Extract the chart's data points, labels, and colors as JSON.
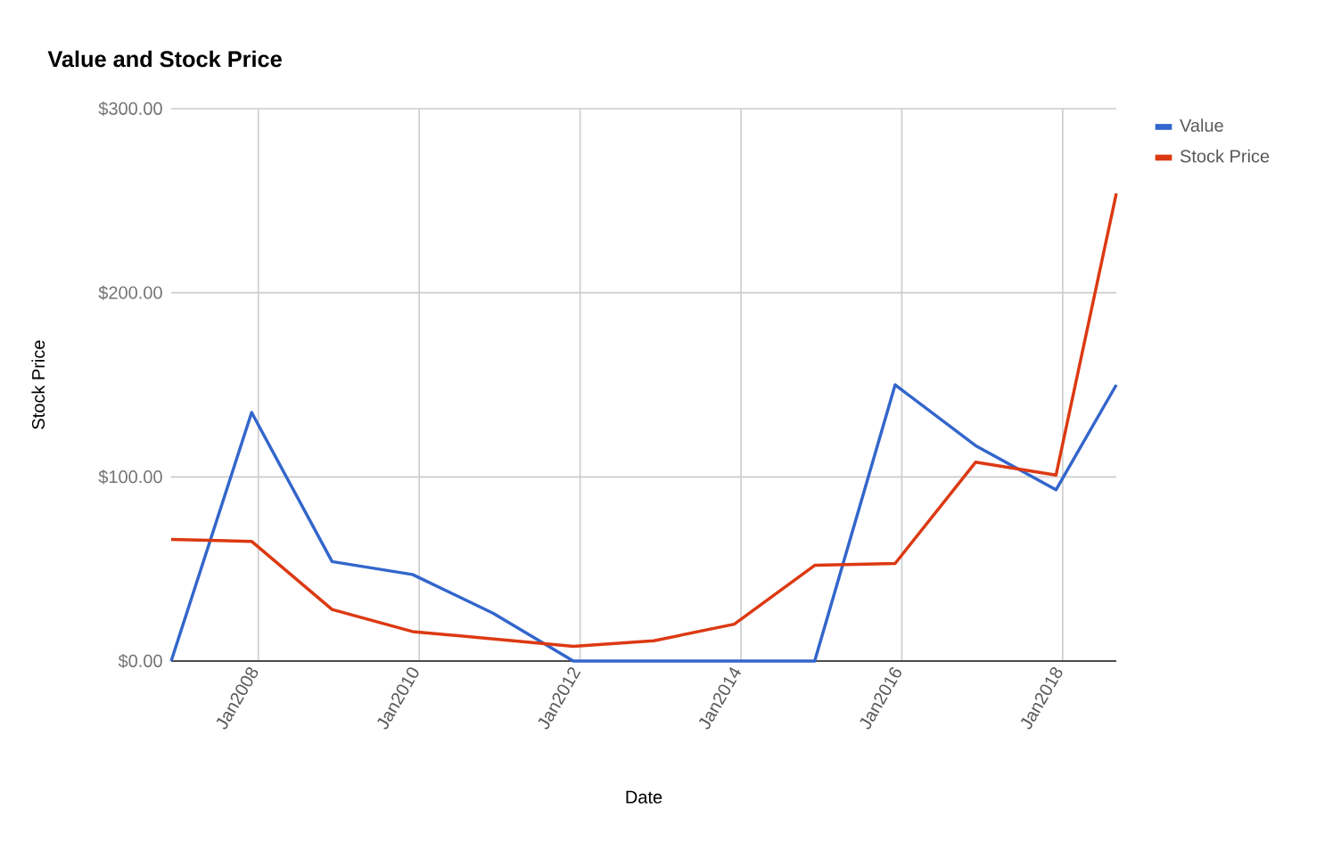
{
  "chart_data": {
    "type": "line",
    "title": "Value and Stock Price",
    "xlabel": "Date",
    "ylabel": "Stock Price",
    "x": [
      "2006-12",
      "2007-12",
      "2008-12",
      "2009-12",
      "2010-12",
      "2011-12",
      "2012-12",
      "2013-12",
      "2014-12",
      "2015-12",
      "2016-12",
      "2017-12",
      "2018-09"
    ],
    "series": [
      {
        "name": "Value",
        "color": "#3366cc",
        "values": [
          0,
          135,
          54,
          47,
          26,
          0,
          0,
          0,
          0,
          150,
          117,
          93,
          150
        ]
      },
      {
        "name": "Stock Price",
        "color": "#dc3912",
        "values": [
          66,
          65,
          28,
          16,
          12,
          8,
          11,
          20,
          52,
          53,
          108,
          101,
          254
        ]
      }
    ],
    "xlim": [
      "2006-12",
      "2018-09"
    ],
    "xticks": [
      {
        "value": "2008-01",
        "label": "Jan2008"
      },
      {
        "value": "2010-01",
        "label": "Jan2010"
      },
      {
        "value": "2012-01",
        "label": "Jan2012"
      },
      {
        "value": "2014-01",
        "label": "Jan2014"
      },
      {
        "value": "2016-01",
        "label": "Jan2016"
      },
      {
        "value": "2018-01",
        "label": "Jan2018"
      }
    ],
    "ylim": [
      0,
      300
    ],
    "yticks": [
      {
        "value": 0,
        "label": "$0.00"
      },
      {
        "value": 100,
        "label": "$100.00"
      },
      {
        "value": 200,
        "label": "$200.00"
      },
      {
        "value": 300,
        "label": "$300.00"
      }
    ],
    "grid": true,
    "legend": "top right",
    "marker": "none",
    "line_style": "solid"
  }
}
